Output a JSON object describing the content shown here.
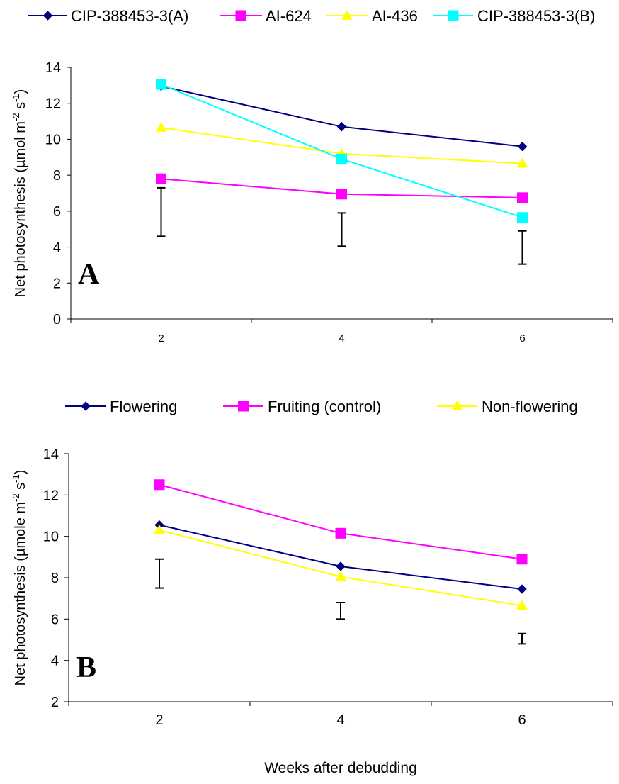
{
  "chart_data": [
    {
      "type": "line",
      "panel_label": "A",
      "ylabel": "Net photosynthesis (µmol m",
      "ylabel_sup1": "-2",
      "ylabel_mid": " s",
      "ylabel_sup2": "-1",
      "ylabel_end": ")",
      "xlabel": "",
      "x": [
        2,
        4,
        6
      ],
      "x_tick_labels": [
        "2",
        "4",
        "6"
      ],
      "xlim": [
        1,
        7
      ],
      "ylim": [
        0,
        14
      ],
      "y_ticks": [
        0,
        2,
        4,
        6,
        8,
        10,
        12,
        14
      ],
      "y_tick_labels": [
        "0",
        "2",
        "4",
        "6",
        "8",
        "10",
        "12",
        "14"
      ],
      "grid": false,
      "legend_position": "top",
      "series": [
        {
          "name": "CIP-388453-3(A)",
          "values": [
            12.95,
            10.7,
            9.6
          ],
          "color": "#000080",
          "marker": "diamond"
        },
        {
          "name": "AI-624",
          "values": [
            7.8,
            6.95,
            6.75
          ],
          "color": "#ff00ff",
          "marker": "square"
        },
        {
          "name": "AI-436",
          "values": [
            10.65,
            9.2,
            8.65
          ],
          "color": "#ffff00",
          "marker": "triangle"
        },
        {
          "name": "CIP-388453-3(B)",
          "values": [
            13.05,
            8.9,
            5.65
          ],
          "color": "#00ffff",
          "marker": "square"
        }
      ],
      "error_bars": [
        {
          "x": 2,
          "low": 4.6,
          "high": 7.3
        },
        {
          "x": 4,
          "low": 4.05,
          "high": 5.9
        },
        {
          "x": 6,
          "low": 3.05,
          "high": 4.9
        }
      ]
    },
    {
      "type": "line",
      "panel_label": "B",
      "ylabel": "Net photosynthesis (µmole m",
      "ylabel_sup1": "-2",
      "ylabel_mid": " s",
      "ylabel_sup2": "-1",
      "ylabel_end": ")",
      "xlabel": "Weeks after debudding",
      "x": [
        2,
        4,
        6
      ],
      "x_tick_labels": [
        "2",
        "4",
        "6"
      ],
      "xlim": [
        1,
        7
      ],
      "ylim": [
        2,
        14
      ],
      "y_ticks": [
        2,
        4,
        6,
        8,
        10,
        12,
        14
      ],
      "y_tick_labels": [
        "2",
        "4",
        "6",
        "8",
        "10",
        "12",
        "14"
      ],
      "grid": false,
      "legend_position": "top",
      "series": [
        {
          "name": "Flowering",
          "values": [
            10.55,
            8.55,
            7.45
          ],
          "color": "#000080",
          "marker": "diamond"
        },
        {
          "name": "Fruiting (control)",
          "values": [
            12.5,
            10.15,
            8.9
          ],
          "color": "#ff00ff",
          "marker": "square"
        },
        {
          "name": "Non-flowering",
          "values": [
            10.3,
            8.05,
            6.65
          ],
          "color": "#ffff00",
          "marker": "triangle"
        }
      ],
      "error_bars": [
        {
          "x": 2,
          "low": 7.5,
          "high": 8.9
        },
        {
          "x": 4,
          "low": 6.0,
          "high": 6.8
        },
        {
          "x": 6,
          "low": 4.8,
          "high": 5.3
        }
      ]
    }
  ]
}
